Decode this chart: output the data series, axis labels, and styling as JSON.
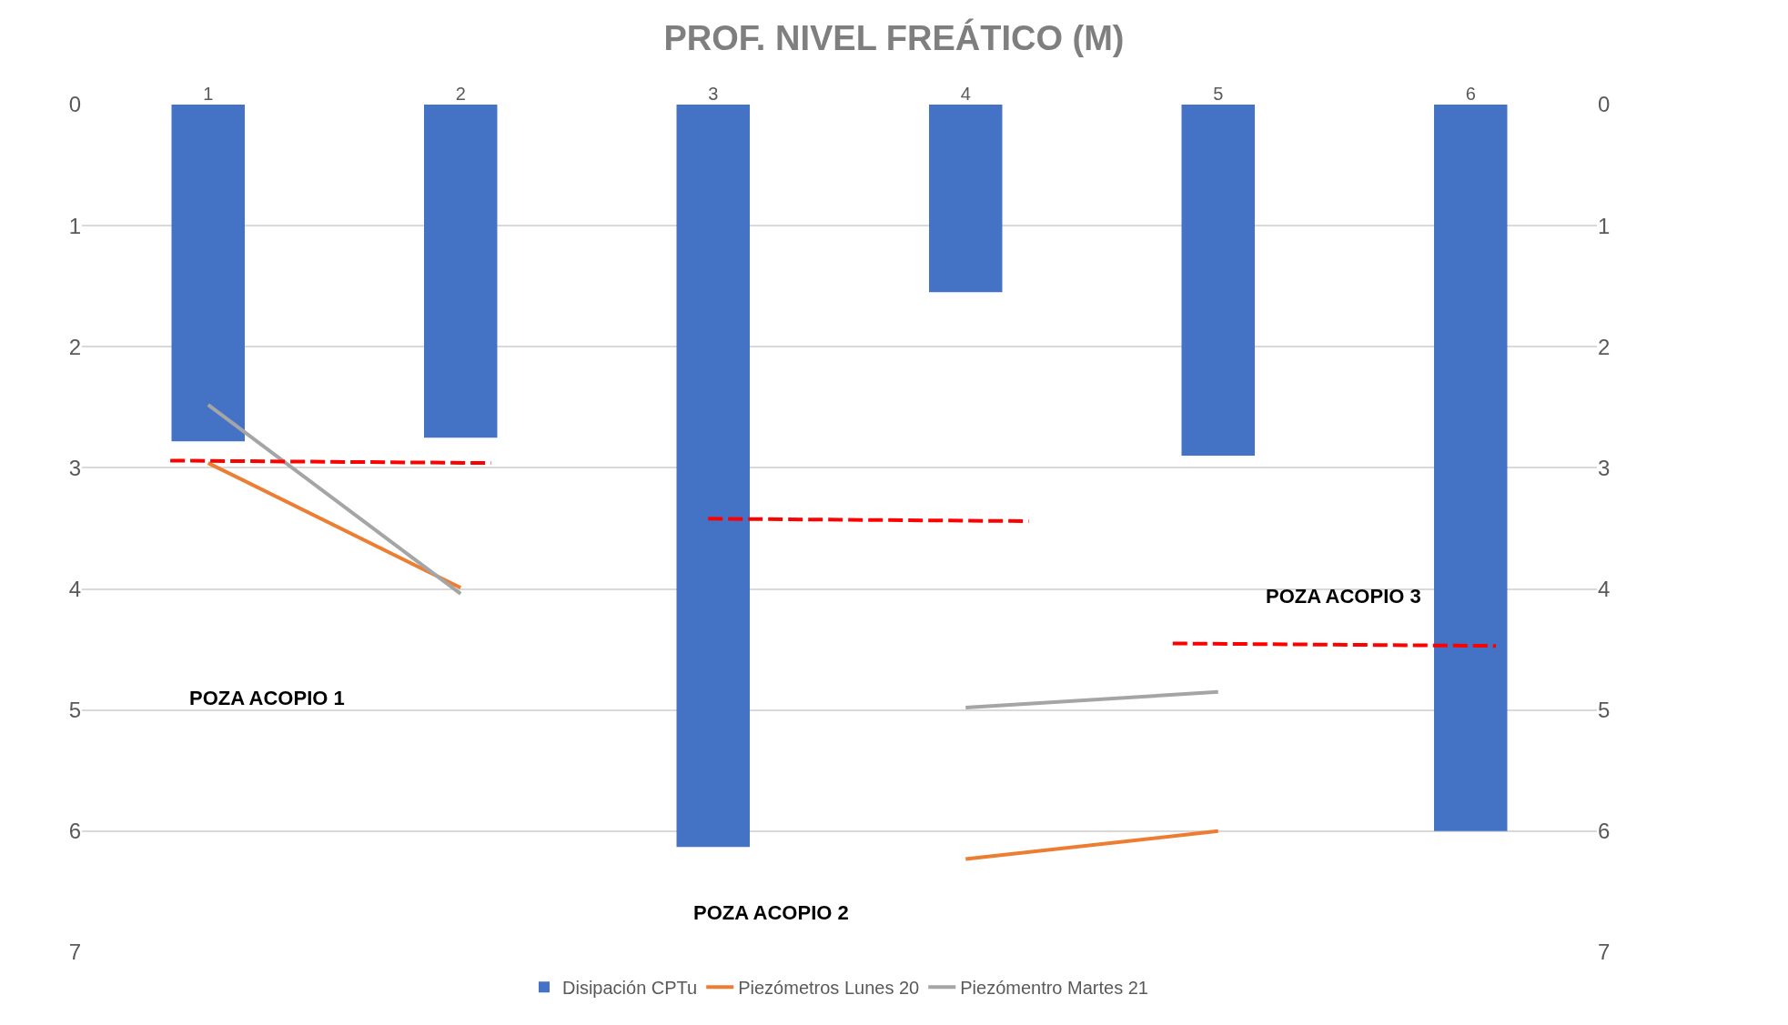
{
  "chart_data": {
    "type": "bar",
    "title": "PROF. NIVEL FREÁTICO (M)",
    "x": [
      1,
      2,
      3,
      4,
      5,
      6
    ],
    "series": [
      {
        "name": "Disipación CPTu",
        "color": "#4472c4",
        "values": [
          2.78,
          2.75,
          6.13,
          1.55,
          2.9,
          6.0
        ]
      },
      {
        "name": "Piezómetros Lunes 20",
        "type": "line",
        "color": "#ed7d31",
        "values": [
          2.96,
          3.99,
          null,
          6.23,
          6.0,
          null
        ]
      },
      {
        "name": "Piezómentro Martes 21",
        "type": "line",
        "color": "#a5a5a5",
        "values": [
          2.48,
          4.04,
          null,
          4.98,
          4.85,
          null
        ]
      },
      {
        "type": "line",
        "color": "#ff0000",
        "line_style": "dashed",
        "x": [
          0.85,
          2.12
        ],
        "values": [
          2.94,
          2.96
        ]
      },
      {
        "type": "line",
        "color": "#ff0000",
        "line_style": "dashed",
        "x": [
          2.98,
          4.25
        ],
        "values": [
          3.42,
          3.44
        ]
      },
      {
        "type": "line",
        "color": "#ff0000",
        "line_style": "dashed",
        "x": [
          4.82,
          6.1
        ],
        "values": [
          4.45,
          4.47
        ]
      }
    ],
    "xlim": [
      0.5,
      6.5
    ],
    "xticks": [
      1,
      2,
      3,
      4,
      5,
      6
    ],
    "ylim": [
      7,
      0
    ],
    "yticks": [
      0,
      1,
      2,
      3,
      4,
      5,
      6,
      7
    ],
    "y2lim": [
      7,
      0
    ],
    "y2ticks": [
      0,
      1,
      2,
      3,
      4,
      5,
      6,
      7
    ],
    "annotations": [
      "POZA ACOPIO 1",
      "POZA ACOPIO 2",
      "POZA ACOPIO 3"
    ],
    "grid": "y",
    "legend": "bottom",
    "marker": "none"
  }
}
